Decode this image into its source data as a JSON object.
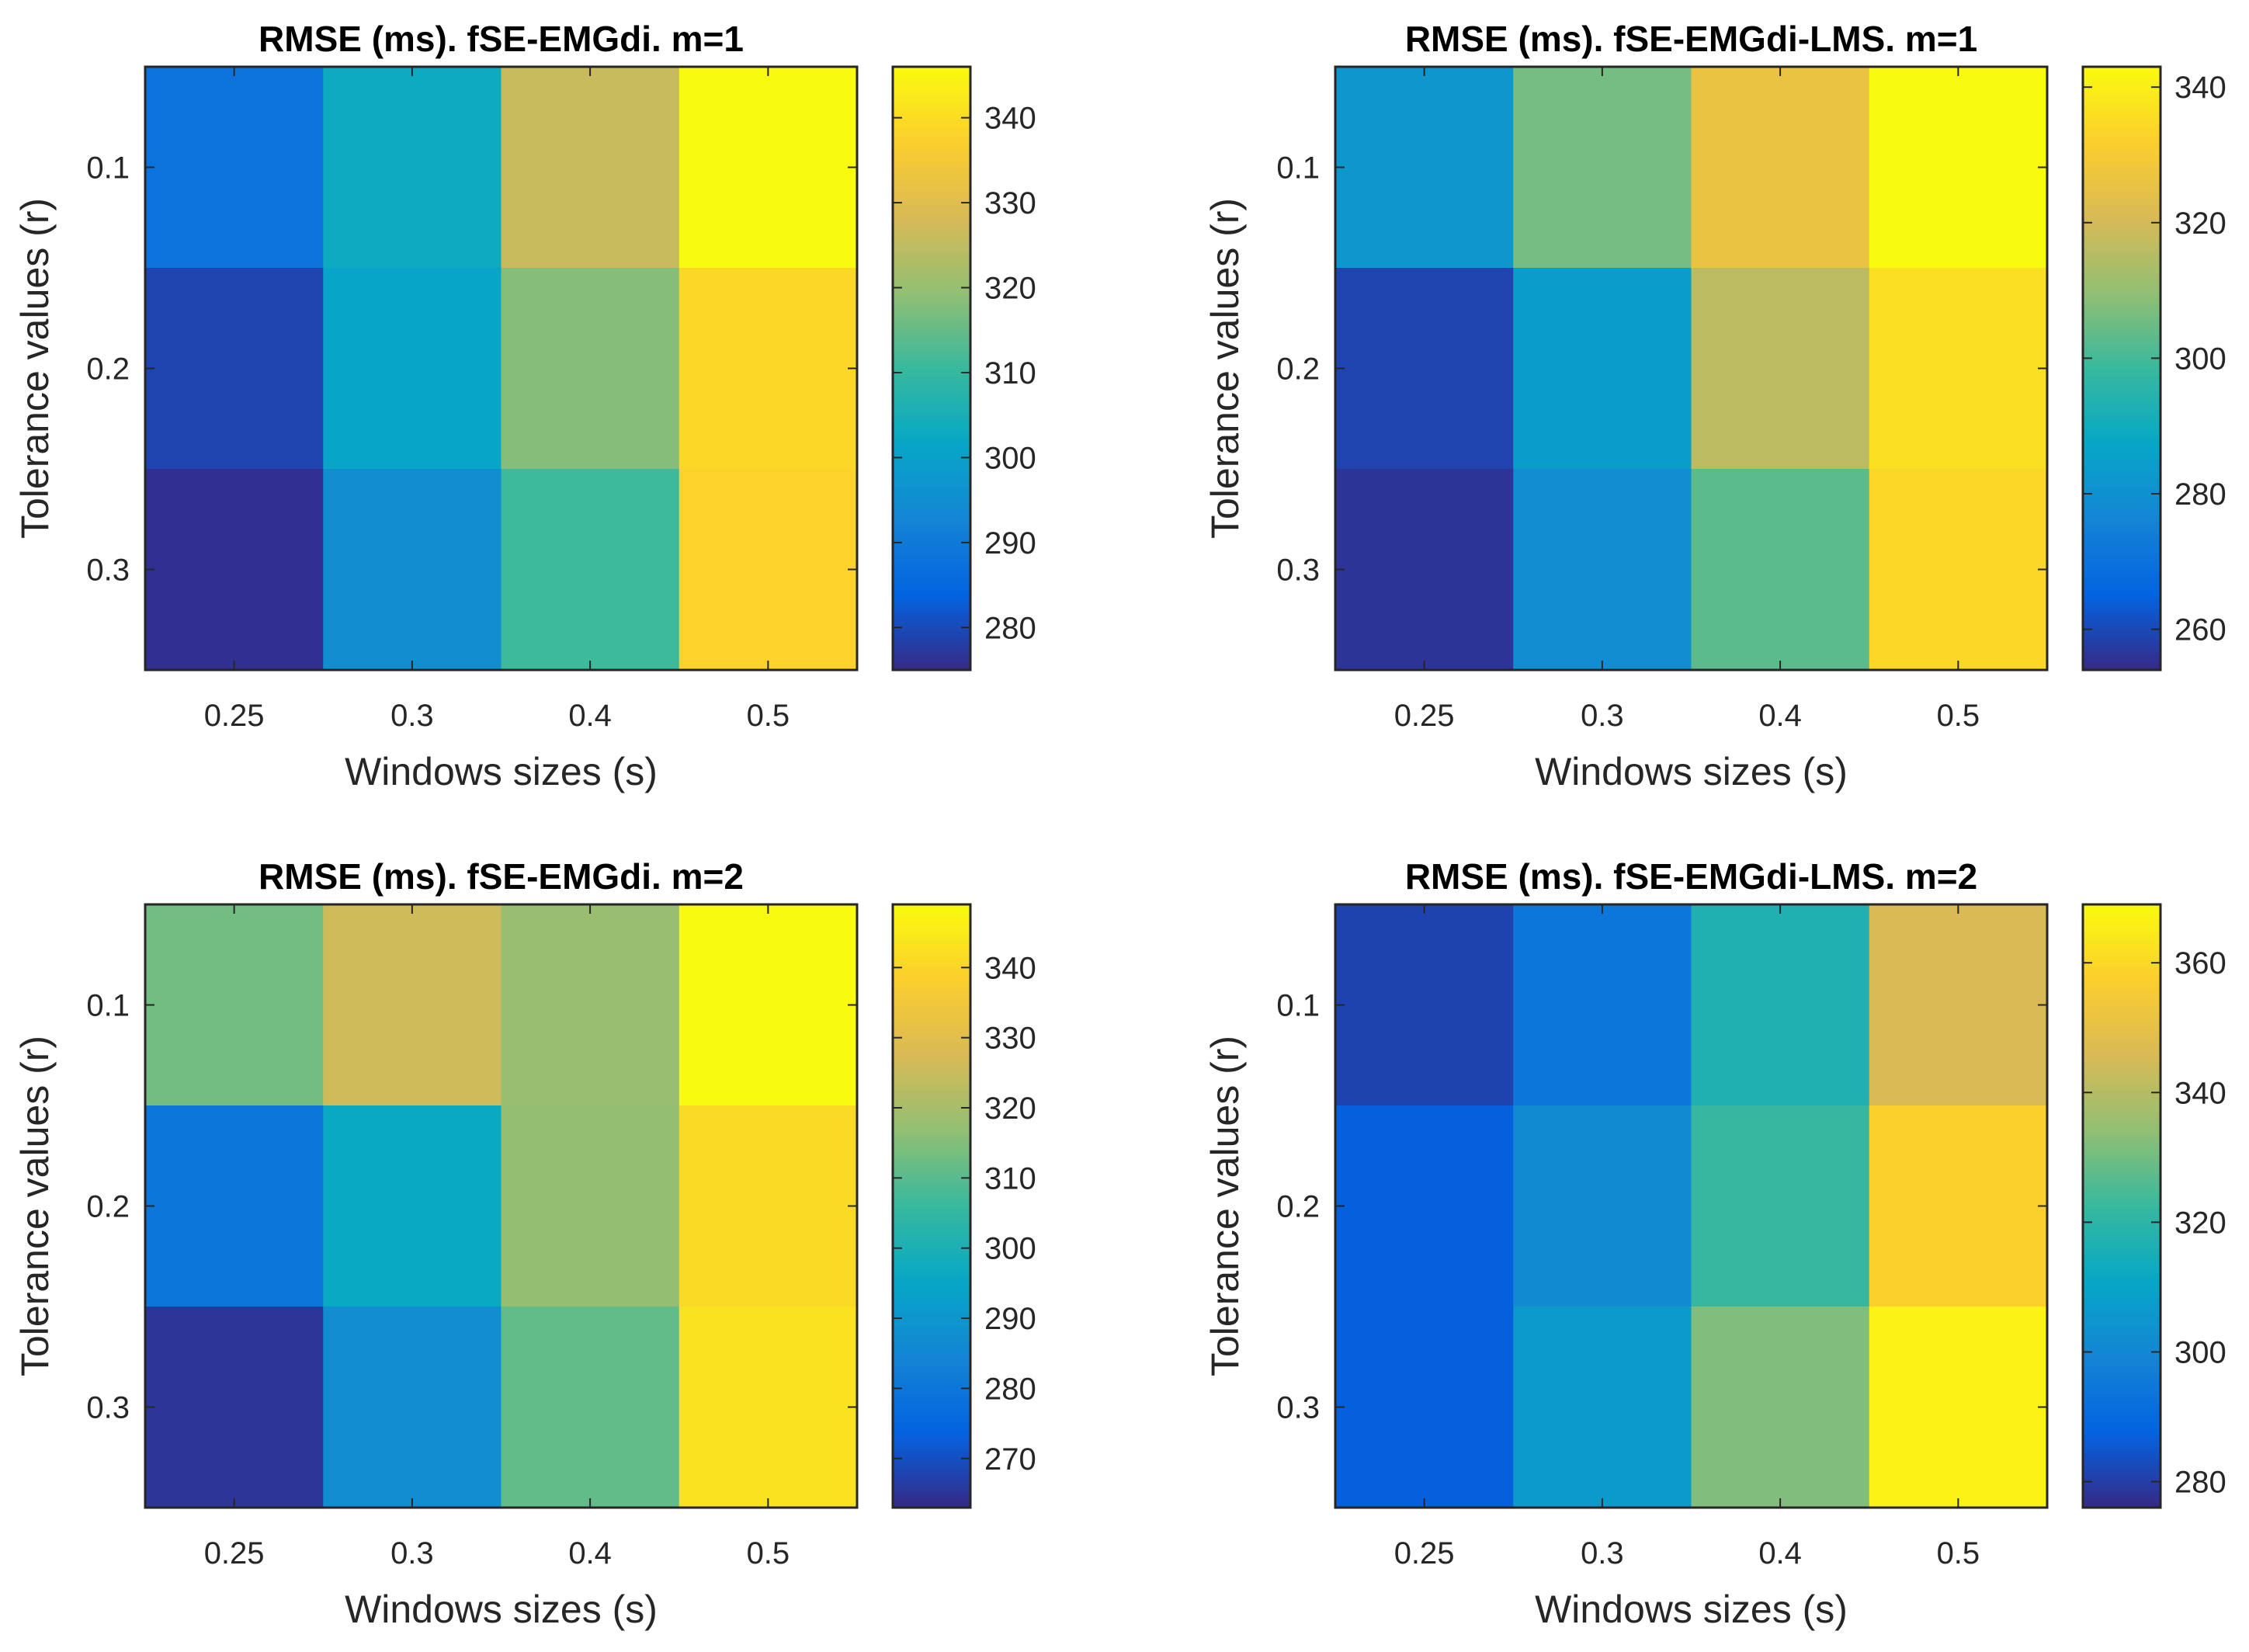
{
  "colormap": "parula",
  "colors": {
    "axis": "#262626",
    "title": "#000000",
    "parula_stops": [
      "#352a87",
      "#0363e1",
      "#1485d4",
      "#06a7c6",
      "#38b99e",
      "#92bf73",
      "#d9ba56",
      "#fcce2e",
      "#f9fb0e"
    ]
  },
  "chart_data": [
    {
      "type": "heatmap",
      "title": "RMSE (ms). fSE-EMGdi. m=1",
      "xlabel": "Windows sizes (s)",
      "ylabel": "Tolerance values (r)",
      "x": [
        "0.25",
        "0.3",
        "0.4",
        "0.5"
      ],
      "y": [
        "0.1",
        "0.2",
        "0.3"
      ],
      "values": [
        [
          288,
          303,
          326,
          346
        ],
        [
          279,
          301,
          318,
          339
        ],
        [
          276,
          295,
          311,
          338
        ]
      ],
      "clim": [
        275,
        346
      ],
      "colorbar_ticks": [
        "280",
        "290",
        "300",
        "310",
        "320",
        "330",
        "340"
      ]
    },
    {
      "type": "heatmap",
      "title": "RMSE (ms). fSE-EMGdi-LMS. m=1",
      "xlabel": "Windows sizes (s)",
      "ylabel": "Tolerance values (r)",
      "x": [
        "0.25",
        "0.3",
        "0.4",
        "0.5"
      ],
      "y": [
        "0.1",
        "0.2",
        "0.3"
      ],
      "values": [
        [
          282,
          306,
          326,
          343
        ],
        [
          259,
          284,
          316,
          336
        ],
        [
          256,
          279,
          303,
          334
        ]
      ],
      "clim": [
        254,
        343
      ],
      "colorbar_ticks": [
        "260",
        "280",
        "300",
        "320",
        "340"
      ]
    },
    {
      "type": "heatmap",
      "title": "RMSE (ms). fSE-EMGdi. m=2",
      "xlabel": "Windows sizes (s)",
      "ylabel": "Tolerance values (r)",
      "x": [
        "0.25",
        "0.3",
        "0.4",
        "0.5"
      ],
      "y": [
        "0.1",
        "0.2",
        "0.3"
      ],
      "values": [
        [
          313,
          326,
          318,
          349
        ],
        [
          280,
          296,
          317,
          341
        ],
        [
          265,
          287,
          311,
          343
        ]
      ],
      "clim": [
        263,
        349
      ],
      "colorbar_ticks": [
        "270",
        "280",
        "290",
        "300",
        "310",
        "320",
        "330",
        "340"
      ]
    },
    {
      "type": "heatmap",
      "title": "RMSE (ms). fSE-EMGdi-LMS. m=2",
      "xlabel": "Windows sizes (s)",
      "ylabel": "Tolerance values (r)",
      "x": [
        "0.25",
        "0.3",
        "0.4",
        "0.5"
      ],
      "y": [
        "0.1",
        "0.2",
        "0.3"
      ],
      "values": [
        [
          281,
          294,
          317,
          346
        ],
        [
          287,
          301,
          322,
          358
        ],
        [
          287,
          306,
          332,
          367
        ]
      ],
      "clim": [
        276,
        369
      ],
      "colorbar_ticks": [
        "280",
        "300",
        "320",
        "340",
        "360"
      ]
    }
  ]
}
